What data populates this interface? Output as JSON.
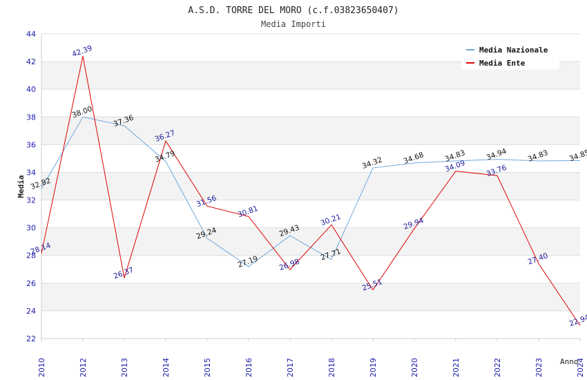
{
  "chart_data": {
    "type": "line",
    "title": "A.S.D. TORRE DEL MORO (c.f.03823650407)",
    "subtitle": "Media Importi",
    "xlabel": "Anno",
    "ylabel": "Media",
    "categories": [
      "2010",
      "2012",
      "2013",
      "2014",
      "2015",
      "2016",
      "2017",
      "2018",
      "2019",
      "2020",
      "2021",
      "2022",
      "2023",
      "2024"
    ],
    "ylim": [
      22,
      44
    ],
    "yticks": [
      22,
      24,
      26,
      28,
      30,
      32,
      34,
      36,
      38,
      40,
      42,
      44
    ],
    "grid": true,
    "legend_position": "top-right",
    "series": [
      {
        "name": "Media Nazionale",
        "color": "#6fa8dc",
        "label_color": "#111111",
        "values": [
          32.82,
          38.0,
          37.36,
          34.79,
          29.24,
          27.19,
          29.43,
          27.71,
          34.32,
          34.68,
          34.83,
          34.94,
          34.83,
          34.85
        ],
        "labels": [
          "32.82",
          "38.00",
          "37.36",
          "34.79",
          "29.24",
          "27.19",
          "29.43",
          "27.71",
          "34.32",
          "34.68",
          "34.83",
          "34.94",
          "34.83",
          "34.85"
        ]
      },
      {
        "name": "Media Ente",
        "color": "#dd0000",
        "label_color": "#1a1a99",
        "values": [
          28.14,
          42.39,
          26.37,
          36.27,
          31.56,
          30.81,
          26.98,
          30.21,
          25.51,
          29.94,
          34.09,
          33.76,
          27.4,
          22.94
        ],
        "labels": [
          "28.14",
          "42.39",
          "26.37",
          "36.27",
          "31.56",
          "30.81",
          "26.98",
          "30.21",
          "25.51",
          "29.94",
          "34.09",
          "33.76",
          "27.40",
          "22.94"
        ]
      }
    ]
  }
}
